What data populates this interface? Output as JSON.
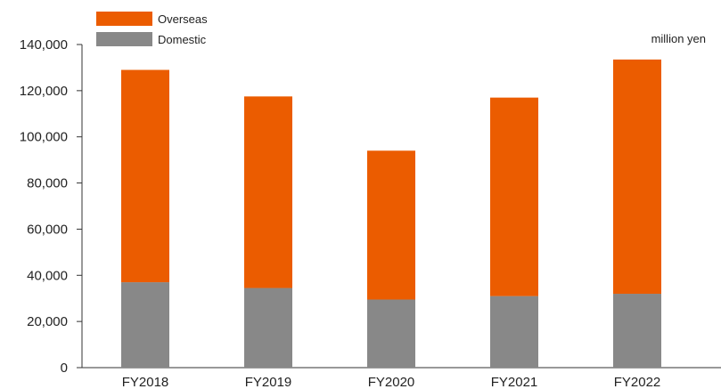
{
  "chart_data": {
    "type": "bar",
    "stacked": true,
    "categories": [
      "FY2018",
      "FY2019",
      "FY2020",
      "FY2021",
      "FY2022"
    ],
    "series": [
      {
        "name": "Domestic",
        "values": [
          37000,
          34500,
          29500,
          31000,
          32000
        ],
        "color": "#888888"
      },
      {
        "name": "Overseas",
        "values": [
          92000,
          83000,
          64500,
          86000,
          101500
        ],
        "color": "#eb5c00"
      }
    ],
    "unit_label": "million yen",
    "ylim": [
      0,
      140000
    ],
    "yticks": [
      0,
      20000,
      40000,
      60000,
      80000,
      100000,
      120000,
      140000
    ],
    "ytick_labels": [
      "0",
      "20,000",
      "40,000",
      "60,000",
      "80,000",
      "100,000",
      "120,000",
      "140,000"
    ],
    "legend_position": "top-left",
    "grid": false
  }
}
